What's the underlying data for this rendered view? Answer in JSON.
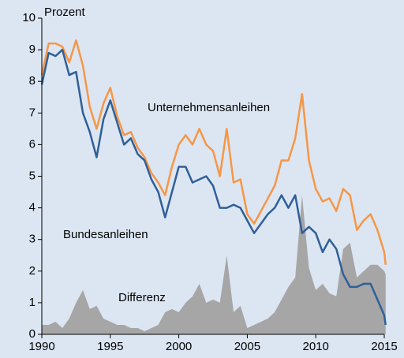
{
  "chart_data": {
    "type": "line",
    "y_label": "Prozent",
    "x": [
      1990,
      1990.5,
      1991,
      1991.5,
      1992,
      1992.5,
      1993,
      1993.5,
      1994,
      1994.5,
      1995,
      1995.5,
      1996,
      1996.5,
      1997,
      1997.5,
      1998,
      1998.5,
      1999,
      1999.5,
      2000,
      2000.5,
      2001,
      2001.5,
      2002,
      2002.5,
      2003,
      2003.5,
      2004,
      2004.5,
      2005,
      2005.5,
      2006,
      2006.5,
      2007,
      2007.5,
      2008,
      2008.5,
      2009,
      2009.5,
      2010,
      2010.5,
      2011,
      2011.5,
      2012,
      2012.5,
      2013,
      2013.5,
      2014,
      2014.5,
      2015,
      2015.1
    ],
    "series": [
      {
        "name": "Unternehmensanleihen",
        "color": "#f79646",
        "type": "line",
        "values": [
          8.2,
          9.2,
          9.2,
          9.1,
          8.6,
          9.3,
          8.5,
          7.2,
          6.5,
          7.3,
          7.8,
          6.9,
          6.3,
          6.4,
          5.9,
          5.6,
          5.1,
          4.8,
          4.4,
          5.3,
          6.0,
          6.3,
          6.0,
          6.5,
          6.0,
          5.8,
          5.0,
          6.5,
          4.8,
          4.9,
          3.8,
          3.5,
          3.9,
          4.3,
          4.7,
          5.5,
          5.5,
          6.2,
          7.6,
          5.5,
          4.6,
          4.2,
          4.3,
          3.9,
          4.6,
          4.4,
          3.3,
          3.6,
          3.8,
          3.3,
          2.6,
          2.2
        ]
      },
      {
        "name": "Bundesanleihen",
        "color": "#2f5f98",
        "type": "line",
        "values": [
          7.9,
          8.9,
          8.8,
          9.0,
          8.2,
          8.3,
          7.0,
          6.4,
          5.6,
          6.8,
          7.4,
          6.7,
          6.0,
          6.2,
          5.7,
          5.5,
          4.9,
          4.5,
          3.7,
          4.5,
          5.3,
          5.3,
          4.8,
          4.9,
          5.0,
          4.7,
          4.0,
          4.0,
          4.1,
          4.0,
          3.6,
          3.2,
          3.5,
          3.8,
          4.0,
          4.4,
          4.0,
          4.4,
          3.2,
          3.4,
          3.2,
          2.6,
          3.0,
          2.7,
          1.9,
          1.5,
          1.5,
          1.6,
          1.6,
          1.1,
          0.6,
          0.3
        ]
      },
      {
        "name": "Differenz",
        "color": "#a6a6a6",
        "type": "area",
        "values": [
          0.3,
          0.3,
          0.4,
          0.2,
          0.5,
          1.0,
          1.4,
          0.8,
          0.9,
          0.5,
          0.4,
          0.3,
          0.3,
          0.2,
          0.2,
          0.1,
          0.2,
          0.3,
          0.7,
          0.8,
          0.7,
          1.0,
          1.2,
          1.6,
          1.0,
          1.1,
          1.0,
          2.5,
          0.7,
          0.9,
          0.2,
          0.3,
          0.4,
          0.5,
          0.7,
          1.1,
          1.5,
          1.8,
          4.4,
          2.1,
          1.4,
          1.6,
          1.3,
          1.2,
          2.7,
          2.9,
          1.8,
          2.0,
          2.2,
          2.2,
          2.0,
          1.9
        ]
      }
    ],
    "xlim": [
      1990,
      2015
    ],
    "xticks": [
      1990,
      1995,
      2000,
      2005,
      2010,
      2015
    ],
    "ylim": [
      0,
      10
    ],
    "yticks": [
      0,
      1,
      2,
      3,
      4,
      5,
      6,
      7,
      8,
      9,
      10
    ]
  }
}
